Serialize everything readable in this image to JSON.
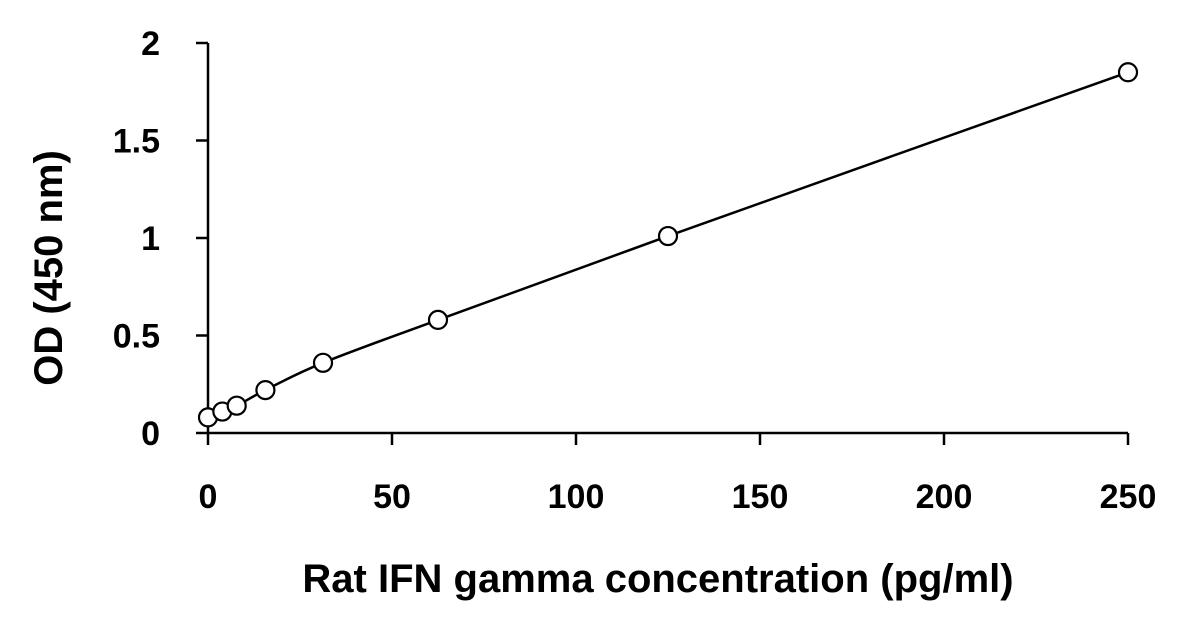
{
  "chart_data": {
    "type": "scatter",
    "title": "",
    "xlabel": "Rat IFN gamma concentration (pg/ml)",
    "ylabel": "OD (450 nm)",
    "xlim": [
      0,
      250
    ],
    "ylim": [
      0,
      2
    ],
    "xticks": [
      0,
      50,
      100,
      150,
      200,
      250
    ],
    "yticks": [
      0,
      0.5,
      1,
      1.5,
      2
    ],
    "xtick_labels": [
      "0",
      "50",
      "100",
      "150",
      "200",
      "250"
    ],
    "ytick_labels": [
      "0",
      "0.5",
      "1",
      "1.5",
      "2"
    ],
    "grid": false,
    "legend": "none",
    "marker": "open-circle",
    "trendline": "smooth fit through points",
    "series": [
      {
        "x": [
          0,
          3.9,
          7.8,
          15.6,
          31.25,
          62.5,
          125,
          250
        ],
        "y": [
          0.08,
          0.11,
          0.14,
          0.22,
          0.36,
          0.58,
          1.01,
          1.85
        ]
      }
    ]
  }
}
